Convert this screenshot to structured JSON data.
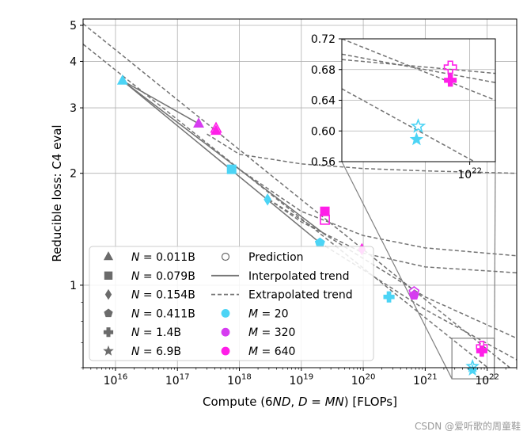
{
  "chart_data": {
    "type": "scatter",
    "xlabel": "Compute (6ND, D = MN) [FLOPs]",
    "ylabel": "Reducible loss: C4 eval",
    "xscale": "log",
    "yscale": "log",
    "xlim": [
      3000000000000000.0,
      3e+22
    ],
    "ylim": [
      0.6,
      5.2
    ],
    "grid": true,
    "x_ticks": [
      {
        "value": 1e+16,
        "label": "10^16"
      },
      {
        "value": 1e+17,
        "label": "10^17"
      },
      {
        "value": 1e+18,
        "label": "10^18"
      },
      {
        "value": 1e+19,
        "label": "10^19"
      },
      {
        "value": 1e+20,
        "label": "10^20"
      },
      {
        "value": 1e+21,
        "label": "10^21"
      },
      {
        "value": 1e+22,
        "label": "10^22"
      }
    ],
    "y_ticks": [
      {
        "value": 1,
        "label": "1"
      },
      {
        "value": 2,
        "label": "2"
      },
      {
        "value": 3,
        "label": "3"
      },
      {
        "value": 4,
        "label": "4"
      },
      {
        "value": 5,
        "label": "5"
      }
    ],
    "legend": {
      "position": "lower-left",
      "model_sizes": [
        {
          "marker": "triangle",
          "label": "N = 0.011B"
        },
        {
          "marker": "square",
          "label": "N = 0.079B"
        },
        {
          "marker": "diamond",
          "label": "N = 0.154B"
        },
        {
          "marker": "pentagon",
          "label": "N = 0.411B"
        },
        {
          "marker": "plus",
          "label": "N = 1.4B"
        },
        {
          "marker": "star",
          "label": "N = 6.9B"
        }
      ],
      "styles": [
        {
          "kind": "prediction",
          "label": "Prediction"
        },
        {
          "kind": "interpolated",
          "label": "Interpolated trend"
        },
        {
          "kind": "extrapolated",
          "label": "Extrapolated trend"
        }
      ],
      "multipliers": [
        {
          "color": "#4cd4f5",
          "label": "M = 20"
        },
        {
          "color": "#d63cf0",
          "label": "M = 320"
        },
        {
          "color": "#ff1ee8",
          "label": "M = 640"
        }
      ]
    },
    "colors": {
      "M20": "#4cd4f5",
      "M320": "#d63cf0",
      "M640": "#ff1ee8",
      "trend": "#737373"
    },
    "points": [
      {
        "series": "M = 20",
        "marker": "triangle",
        "x": 1.3e+16,
        "y": 3.55,
        "filled": true
      },
      {
        "series": "M = 20",
        "marker": "square",
        "x": 7.5e+17,
        "y": 2.05,
        "filled": true
      },
      {
        "series": "M = 20",
        "marker": "diamond",
        "x": 2.85e+18,
        "y": 1.7,
        "filled": true
      },
      {
        "series": "M = 20",
        "marker": "pentagon",
        "x": 2e+19,
        "y": 1.3,
        "filled": true
      },
      {
        "series": "M = 20",
        "marker": "plus",
        "x": 2.6e+20,
        "y": 0.93,
        "filled": true
      },
      {
        "series": "M = 20",
        "marker": "star",
        "x": 5.8e+21,
        "y": 0.59,
        "filled": true
      },
      {
        "series": "M = 20",
        "marker": "star",
        "x": 5.8e+21,
        "y": 0.605,
        "filled": false
      },
      {
        "series": "M = 320",
        "marker": "triangle",
        "x": 2.2e+17,
        "y": 2.72,
        "filled": true
      },
      {
        "series": "M = 320",
        "marker": "pentagon",
        "x": 6.6e+20,
        "y": 0.94,
        "filled": true
      },
      {
        "series": "M = 320",
        "marker": "pentagon",
        "x": 6.6e+20,
        "y": 0.96,
        "filled": false
      },
      {
        "series": "M = 640",
        "marker": "triangle",
        "x": 4.2e+17,
        "y": 2.6,
        "filled": true
      },
      {
        "series": "M = 640",
        "marker": "triangle",
        "x": 4.2e+17,
        "y": 2.64,
        "filled": false
      },
      {
        "series": "M = 640",
        "marker": "square",
        "x": 2.4e+19,
        "y": 1.58,
        "filled": true
      },
      {
        "series": "M = 640",
        "marker": "square",
        "x": 2.4e+19,
        "y": 1.5,
        "filled": false
      },
      {
        "series": "M = 640",
        "marker": "diamond",
        "x": 9.5e+19,
        "y": 1.25,
        "filled": true
      },
      {
        "series": "M = 640",
        "marker": "plus",
        "x": 8.2e+21,
        "y": 0.665,
        "filled": true
      },
      {
        "series": "M = 640",
        "marker": "plus",
        "x": 8.2e+21,
        "y": 0.683,
        "filled": false
      }
    ],
    "interpolated_trends": [
      {
        "series": "M = 20",
        "x": [
          1.3e+16,
          2e+19
        ],
        "y": [
          3.55,
          1.3
        ]
      },
      {
        "series": "M = 320",
        "x": [
          1.3e+16,
          2.2e+17
        ],
        "y": [
          3.55,
          2.72
        ]
      },
      {
        "series": "M = 640",
        "x": [
          1.3e+16,
          2.4e+19
        ],
        "y": [
          3.55,
          1.37
        ]
      }
    ],
    "extrapolated_trends": [
      {
        "series": "M = 20",
        "x": [
          3000000000000000.0,
          3e+22
        ],
        "y": [
          4.45,
          0.52
        ]
      },
      {
        "series": "M = 640",
        "x": [
          3000000000000000.0,
          3e+22
        ],
        "y": [
          5.05,
          0.58
        ]
      },
      {
        "series": "flattening-1",
        "x": [
          3e+17,
          1e+18,
          1e+19,
          1e+20,
          1e+21,
          3e+22
        ],
        "y": [
          2.55,
          2.25,
          2.12,
          2.06,
          2.03,
          2.0
        ]
      },
      {
        "series": "flattening-2",
        "x": [
          1e+18,
          1e+19,
          1e+20,
          1e+21,
          3e+22
        ],
        "y": [
          2.05,
          1.58,
          1.36,
          1.26,
          1.2
        ]
      },
      {
        "series": "flattening-3",
        "x": [
          3e+18,
          1e+19,
          1e+20,
          1e+21,
          3e+22
        ],
        "y": [
          1.7,
          1.48,
          1.22,
          1.12,
          1.08
        ]
      },
      {
        "series": "steep-1",
        "x": [
          3e+18,
          1e+19,
          1e+20,
          1e+21,
          3e+22
        ],
        "y": [
          1.7,
          1.5,
          1.18,
          0.93,
          0.72
        ]
      },
      {
        "series": "steep-2",
        "x": [
          2e+19,
          1e+20,
          1e+21,
          3e+22
        ],
        "y": [
          1.3,
          1.1,
          0.86,
          0.63
        ]
      }
    ],
    "inset": {
      "xlim": [
        2.7e+21,
        1.3e+22
      ],
      "ylim": [
        0.56,
        0.72
      ],
      "y_ticks": [
        {
          "value": 0.56,
          "label": "0.56"
        },
        {
          "value": 0.6,
          "label": "0.60"
        },
        {
          "value": 0.64,
          "label": "0.64"
        },
        {
          "value": 0.68,
          "label": "0.68"
        },
        {
          "value": 0.72,
          "label": "0.72"
        }
      ],
      "x_ticks": [
        {
          "value": 1e+22,
          "label": "10^22"
        }
      ],
      "points": [
        {
          "series": "M = 20",
          "marker": "star",
          "x": 5.8e+21,
          "y": 0.589,
          "filled": true
        },
        {
          "series": "M = 20",
          "marker": "star",
          "x": 5.9e+21,
          "y": 0.606,
          "filled": false
        },
        {
          "series": "M = 640",
          "marker": "plus",
          "x": 8.2e+21,
          "y": 0.666,
          "filled": true
        },
        {
          "series": "M = 640",
          "marker": "plus",
          "x": 8.2e+21,
          "y": 0.683,
          "filled": false
        }
      ],
      "extrapolated_lines": [
        {
          "x": [
            2.7e+21,
            1.3e+22
          ],
          "y": [
            0.72,
            0.64
          ]
        },
        {
          "x": [
            2.7e+21,
            1.3e+22
          ],
          "y": [
            0.655,
            0.545
          ]
        },
        {
          "x": [
            2.7e+21,
            1.3e+22
          ],
          "y": [
            0.7,
            0.663
          ]
        },
        {
          "x": [
            2.7e+21,
            1.3e+22
          ],
          "y": [
            0.693,
            0.675
          ]
        }
      ]
    }
  },
  "watermark": "CSDN @爱听歌的周童鞋"
}
